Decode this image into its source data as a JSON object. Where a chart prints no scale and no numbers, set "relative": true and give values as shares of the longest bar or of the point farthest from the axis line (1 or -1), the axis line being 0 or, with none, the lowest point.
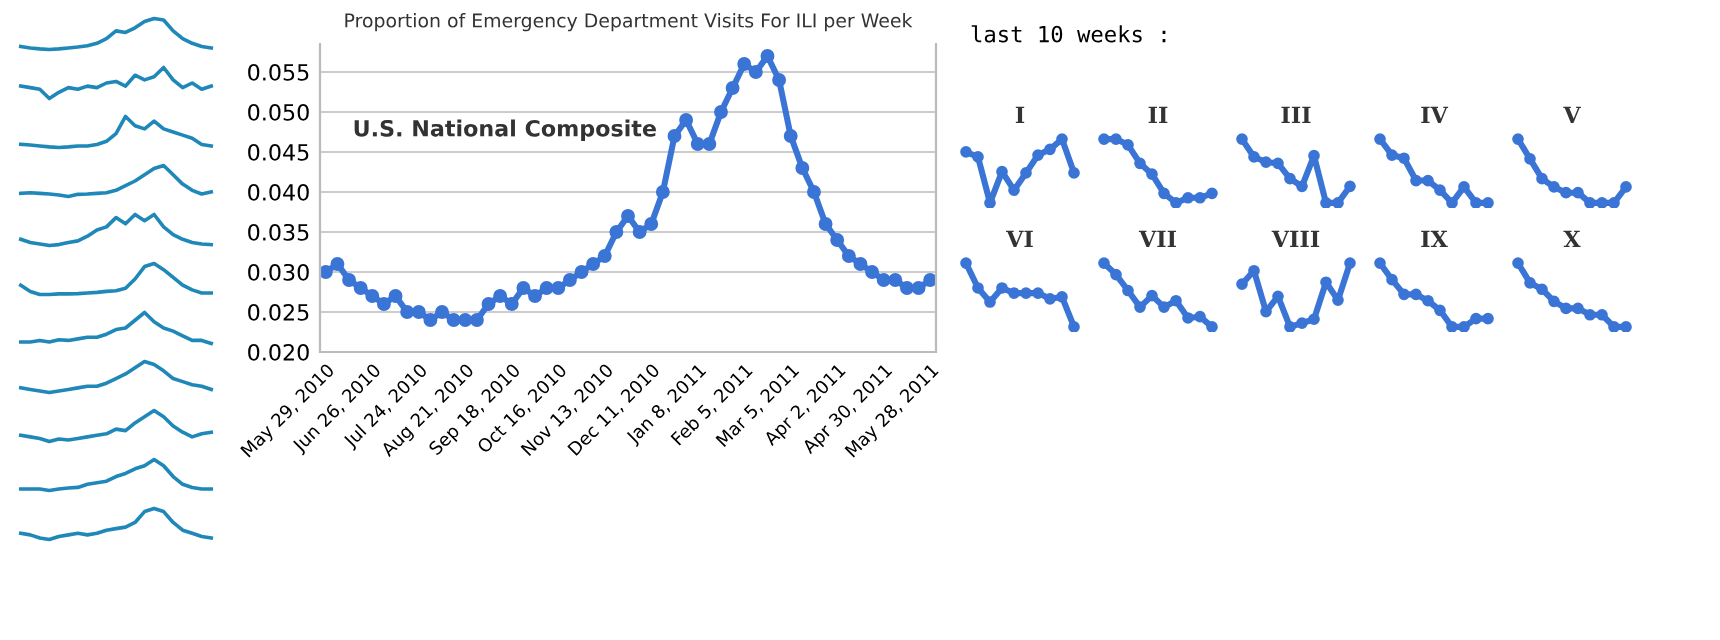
{
  "chart_data": [
    {
      "type": "line",
      "relative": true,
      "color": "#1f88b8",
      "categories": [
        null,
        null,
        null,
        null,
        null,
        null,
        null,
        null,
        null,
        null,
        null,
        null,
        null,
        null,
        null,
        null,
        null,
        null,
        null,
        null,
        null
      ],
      "values": [
        0.1,
        0.05,
        0.02,
        0,
        0.02,
        0.05,
        0.08,
        0.12,
        0.2,
        0.35,
        0.6,
        0.55,
        0.7,
        0.9,
        1,
        0.95,
        0.6,
        0.35,
        0.2,
        0.1,
        0.05
      ]
    },
    {
      "type": "line",
      "relative": true,
      "color": "#1f88b8",
      "categories": [
        null,
        null,
        null,
        null,
        null,
        null,
        null,
        null,
        null,
        null,
        null,
        null,
        null,
        null,
        null,
        null,
        null,
        null,
        null,
        null,
        null
      ],
      "values": [
        0.4,
        0.35,
        0.3,
        0,
        0.2,
        0.35,
        0.3,
        0.4,
        0.35,
        0.5,
        0.55,
        0.4,
        0.75,
        0.6,
        0.7,
        1,
        0.6,
        0.35,
        0.5,
        0.3,
        0.4
      ]
    },
    {
      "type": "line",
      "relative": true,
      "color": "#1f88b8",
      "categories": [
        null,
        null,
        null,
        null,
        null,
        null,
        null,
        null,
        null,
        null,
        null,
        null,
        null,
        null,
        null,
        null,
        null,
        null,
        null,
        null,
        null
      ],
      "values": [
        0.1,
        0.08,
        0.05,
        0.02,
        0,
        0.02,
        0.05,
        0.05,
        0.1,
        0.2,
        0.45,
        1,
        0.7,
        0.6,
        0.85,
        0.6,
        0.5,
        0.4,
        0.3,
        0.1,
        0.05
      ]
    },
    {
      "type": "line",
      "relative": true,
      "color": "#1f88b8",
      "categories": [
        null,
        null,
        null,
        null,
        null,
        null,
        null,
        null,
        null,
        null,
        null,
        null,
        null,
        null,
        null,
        null,
        null,
        null,
        null,
        null,
        null
      ],
      "values": [
        0.1,
        0.12,
        0.1,
        0.08,
        0.05,
        0,
        0.07,
        0.08,
        0.1,
        0.12,
        0.2,
        0.35,
        0.5,
        0.7,
        0.9,
        1,
        0.7,
        0.4,
        0.2,
        0.08,
        0.15
      ]
    },
    {
      "type": "line",
      "relative": true,
      "color": "#1f88b8",
      "categories": [
        null,
        null,
        null,
        null,
        null,
        null,
        null,
        null,
        null,
        null,
        null,
        null,
        null,
        null,
        null,
        null,
        null,
        null,
        null,
        null,
        null
      ],
      "values": [
        0.2,
        0.1,
        0.05,
        0,
        0.03,
        0.1,
        0.15,
        0.3,
        0.5,
        0.6,
        0.9,
        0.7,
        1,
        0.8,
        1,
        0.6,
        0.35,
        0.2,
        0.1,
        0.05,
        0.03
      ]
    },
    {
      "type": "line",
      "relative": true,
      "color": "#1f88b8",
      "categories": [
        null,
        null,
        null,
        null,
        null,
        null,
        null,
        null,
        null,
        null,
        null,
        null,
        null,
        null,
        null,
        null,
        null,
        null,
        null,
        null,
        null
      ],
      "values": [
        0.3,
        0.1,
        0,
        0,
        0.02,
        0.02,
        0.03,
        0.05,
        0.07,
        0.1,
        0.12,
        0.2,
        0.5,
        0.9,
        1,
        0.8,
        0.55,
        0.3,
        0.15,
        0.05,
        0.05
      ]
    },
    {
      "type": "line",
      "relative": true,
      "color": "#1f88b8",
      "categories": [
        null,
        null,
        null,
        null,
        null,
        null,
        null,
        null,
        null,
        null,
        null,
        null,
        null,
        null,
        null,
        null,
        null,
        null,
        null,
        null,
        null
      ],
      "values": [
        0.05,
        0.05,
        0.1,
        0.05,
        0.12,
        0.1,
        0.15,
        0.2,
        0.2,
        0.3,
        0.45,
        0.5,
        0.75,
        1,
        0.7,
        0.5,
        0.4,
        0.25,
        0.1,
        0.1,
        0
      ]
    },
    {
      "type": "line",
      "relative": true,
      "color": "#1f88b8",
      "categories": [
        null,
        null,
        null,
        null,
        null,
        null,
        null,
        null,
        null,
        null,
        null,
        null,
        null,
        null,
        null,
        null,
        null,
        null,
        null,
        null,
        null
      ],
      "values": [
        0.15,
        0.1,
        0.05,
        0,
        0.05,
        0.1,
        0.15,
        0.2,
        0.2,
        0.3,
        0.45,
        0.6,
        0.8,
        1,
        0.9,
        0.7,
        0.45,
        0.35,
        0.25,
        0.2,
        0.1
      ]
    },
    {
      "type": "line",
      "relative": true,
      "color": "#1f88b8",
      "categories": [
        null,
        null,
        null,
        null,
        null,
        null,
        null,
        null,
        null,
        null,
        null,
        null,
        null,
        null,
        null,
        null,
        null,
        null,
        null,
        null,
        null
      ],
      "values": [
        0.2,
        0.15,
        0.1,
        0,
        0.08,
        0.05,
        0.1,
        0.15,
        0.2,
        0.25,
        0.4,
        0.35,
        0.6,
        0.8,
        1,
        0.8,
        0.5,
        0.3,
        0.15,
        0.25,
        0.3
      ]
    },
    {
      "type": "line",
      "relative": true,
      "color": "#1f88b8",
      "categories": [
        null,
        null,
        null,
        null,
        null,
        null,
        null,
        null,
        null,
        null,
        null,
        null,
        null,
        null,
        null,
        null,
        null,
        null,
        null,
        null,
        null
      ],
      "values": [
        0.05,
        0.05,
        0.05,
        0,
        0.05,
        0.08,
        0.1,
        0.2,
        0.25,
        0.3,
        0.45,
        0.55,
        0.7,
        0.8,
        1,
        0.8,
        0.45,
        0.2,
        0.1,
        0.05,
        0.05
      ]
    },
    {
      "type": "line",
      "relative": true,
      "color": "#1f88b8",
      "categories": [
        null,
        null,
        null,
        null,
        null,
        null,
        null,
        null,
        null,
        null,
        null,
        null,
        null,
        null,
        null,
        null,
        null,
        null,
        null,
        null,
        null
      ],
      "values": [
        0.2,
        0.15,
        0.05,
        0,
        0.1,
        0.15,
        0.2,
        0.15,
        0.2,
        0.3,
        0.35,
        0.4,
        0.55,
        0.9,
        1,
        0.9,
        0.55,
        0.3,
        0.2,
        0.1,
        0.05
      ]
    },
    {
      "type": "line",
      "title": "Proportion of Emergency Department Visits For ILI per Week",
      "annotations": [
        "U.S. National Composite"
      ],
      "color": "#3a75d6",
      "marker": "circle",
      "grid": "y",
      "categories": [
        "May 29, 2010",
        null,
        null,
        null,
        "Jun 26, 2010",
        null,
        null,
        null,
        "Jul 24, 2010",
        null,
        null,
        null,
        "Aug 21, 2010",
        null,
        null,
        null,
        "Sep 18, 2010",
        null,
        null,
        null,
        "Oct 16, 2010",
        null,
        null,
        null,
        "Nov 13, 2010",
        null,
        null,
        null,
        "Dec 11, 2010",
        null,
        null,
        null,
        "Jan 8, 2011",
        null,
        null,
        null,
        "Feb 5, 2011",
        null,
        null,
        null,
        "Mar 5, 2011",
        null,
        null,
        null,
        "Apr 2, 2011",
        null,
        null,
        null,
        "Apr 30, 2011",
        null,
        null,
        null,
        "May 28, 2011"
      ],
      "values": [
        0.03,
        0.031,
        0.029,
        0.028,
        0.027,
        0.026,
        0.027,
        0.025,
        0.025,
        0.024,
        0.025,
        0.024,
        0.024,
        0.024,
        0.026,
        0.027,
        0.026,
        0.028,
        0.027,
        0.028,
        0.028,
        0.029,
        0.03,
        0.031,
        0.032,
        0.035,
        0.037,
        0.035,
        0.036,
        0.04,
        0.047,
        0.049,
        0.046,
        0.046,
        0.05,
        0.053,
        0.056,
        0.055,
        0.057,
        0.054,
        0.047,
        0.043,
        0.04,
        0.036,
        0.034,
        0.032,
        0.031,
        0.03,
        0.029,
        0.029,
        0.028,
        0.028,
        0.029
      ],
      "ylim": [
        0.02,
        0.0585
      ],
      "yticks": [
        {
          "value": 0.02,
          "label": "0.020"
        },
        {
          "value": 0.025,
          "label": "0.025"
        },
        {
          "value": 0.03,
          "label": "0.030"
        },
        {
          "value": 0.035,
          "label": "0.035"
        },
        {
          "value": 0.04,
          "label": "0.040"
        },
        {
          "value": 0.045,
          "label": "0.045"
        },
        {
          "value": 0.05,
          "label": "0.050"
        },
        {
          "value": 0.055,
          "label": "0.055"
        }
      ]
    },
    {
      "type": "other",
      "title": "last 10 weeks :"
    },
    {
      "type": "line",
      "relative": true,
      "title": "I",
      "color": "#3a75d6",
      "marker": "circle",
      "categories": [
        null,
        null,
        null,
        null,
        null,
        null,
        null,
        null,
        null,
        null
      ],
      "values": [
        0.8,
        0.72,
        0,
        0.49,
        0.2,
        0.47,
        0.75,
        0.84,
        1,
        0.47
      ]
    },
    {
      "type": "line",
      "relative": true,
      "title": "II",
      "color": "#3a75d6",
      "marker": "circle",
      "categories": [
        null,
        null,
        null,
        null,
        null,
        null,
        null,
        null,
        null,
        null
      ],
      "values": [
        1,
        1,
        0.91,
        0.62,
        0.45,
        0.15,
        0,
        0.08,
        0.08,
        0.15
      ]
    },
    {
      "type": "line",
      "relative": true,
      "title": "III",
      "color": "#3a75d6",
      "marker": "circle",
      "categories": [
        null,
        null,
        null,
        null,
        null,
        null,
        null,
        null,
        null,
        null
      ],
      "values": [
        1,
        0.72,
        0.64,
        0.62,
        0.38,
        0.26,
        0.74,
        0,
        0,
        0.26
      ]
    },
    {
      "type": "line",
      "relative": true,
      "title": "IV",
      "color": "#3a75d6",
      "marker": "circle",
      "categories": [
        null,
        null,
        null,
        null,
        null,
        null,
        null,
        null,
        null,
        null
      ],
      "values": [
        1,
        0.75,
        0.7,
        0.35,
        0.35,
        0.2,
        0,
        0.25,
        0,
        0
      ]
    },
    {
      "type": "line",
      "relative": true,
      "title": "V",
      "color": "#3a75d6",
      "marker": "circle",
      "categories": [
        null,
        null,
        null,
        null,
        null,
        null,
        null,
        null,
        null,
        null
      ],
      "values": [
        1,
        0.69,
        0.38,
        0.25,
        0.16,
        0.16,
        0,
        0,
        0,
        0.25
      ]
    },
    {
      "type": "line",
      "relative": true,
      "title": "VI",
      "color": "#3a75d6",
      "marker": "circle",
      "categories": [
        null,
        null,
        null,
        null,
        null,
        null,
        null,
        null,
        null,
        null
      ],
      "values": [
        1,
        0.61,
        0.39,
        0.61,
        0.53,
        0.53,
        0.53,
        0.44,
        0.47,
        0
      ]
    },
    {
      "type": "line",
      "relative": true,
      "title": "VII",
      "color": "#3a75d6",
      "marker": "circle",
      "categories": [
        null,
        null,
        null,
        null,
        null,
        null,
        null,
        null,
        null,
        null
      ],
      "values": [
        1,
        0.82,
        0.57,
        0.31,
        0.49,
        0.31,
        0.41,
        0.14,
        0.16,
        0
      ]
    },
    {
      "type": "line",
      "relative": true,
      "title": "VIII",
      "color": "#3a75d6",
      "marker": "circle",
      "categories": [
        null,
        null,
        null,
        null,
        null,
        null,
        null,
        null,
        null,
        null
      ],
      "values": [
        0.67,
        0.88,
        0.24,
        0.48,
        0,
        0.06,
        0.12,
        0.7,
        0.42,
        1
      ]
    },
    {
      "type": "line",
      "relative": true,
      "title": "IX",
      "color": "#3a75d6",
      "marker": "circle",
      "categories": [
        null,
        null,
        null,
        null,
        null,
        null,
        null,
        null,
        null,
        null
      ],
      "values": [
        1,
        0.74,
        0.51,
        0.51,
        0.41,
        0.26,
        0,
        0,
        0.13,
        0.13
      ]
    },
    {
      "type": "line",
      "relative": true,
      "title": "X",
      "color": "#3a75d6",
      "marker": "circle",
      "categories": [
        null,
        null,
        null,
        null,
        null,
        null,
        null,
        null,
        null,
        null
      ],
      "values": [
        1,
        0.69,
        0.59,
        0.4,
        0.29,
        0.29,
        0.19,
        0.19,
        0,
        0
      ]
    }
  ]
}
